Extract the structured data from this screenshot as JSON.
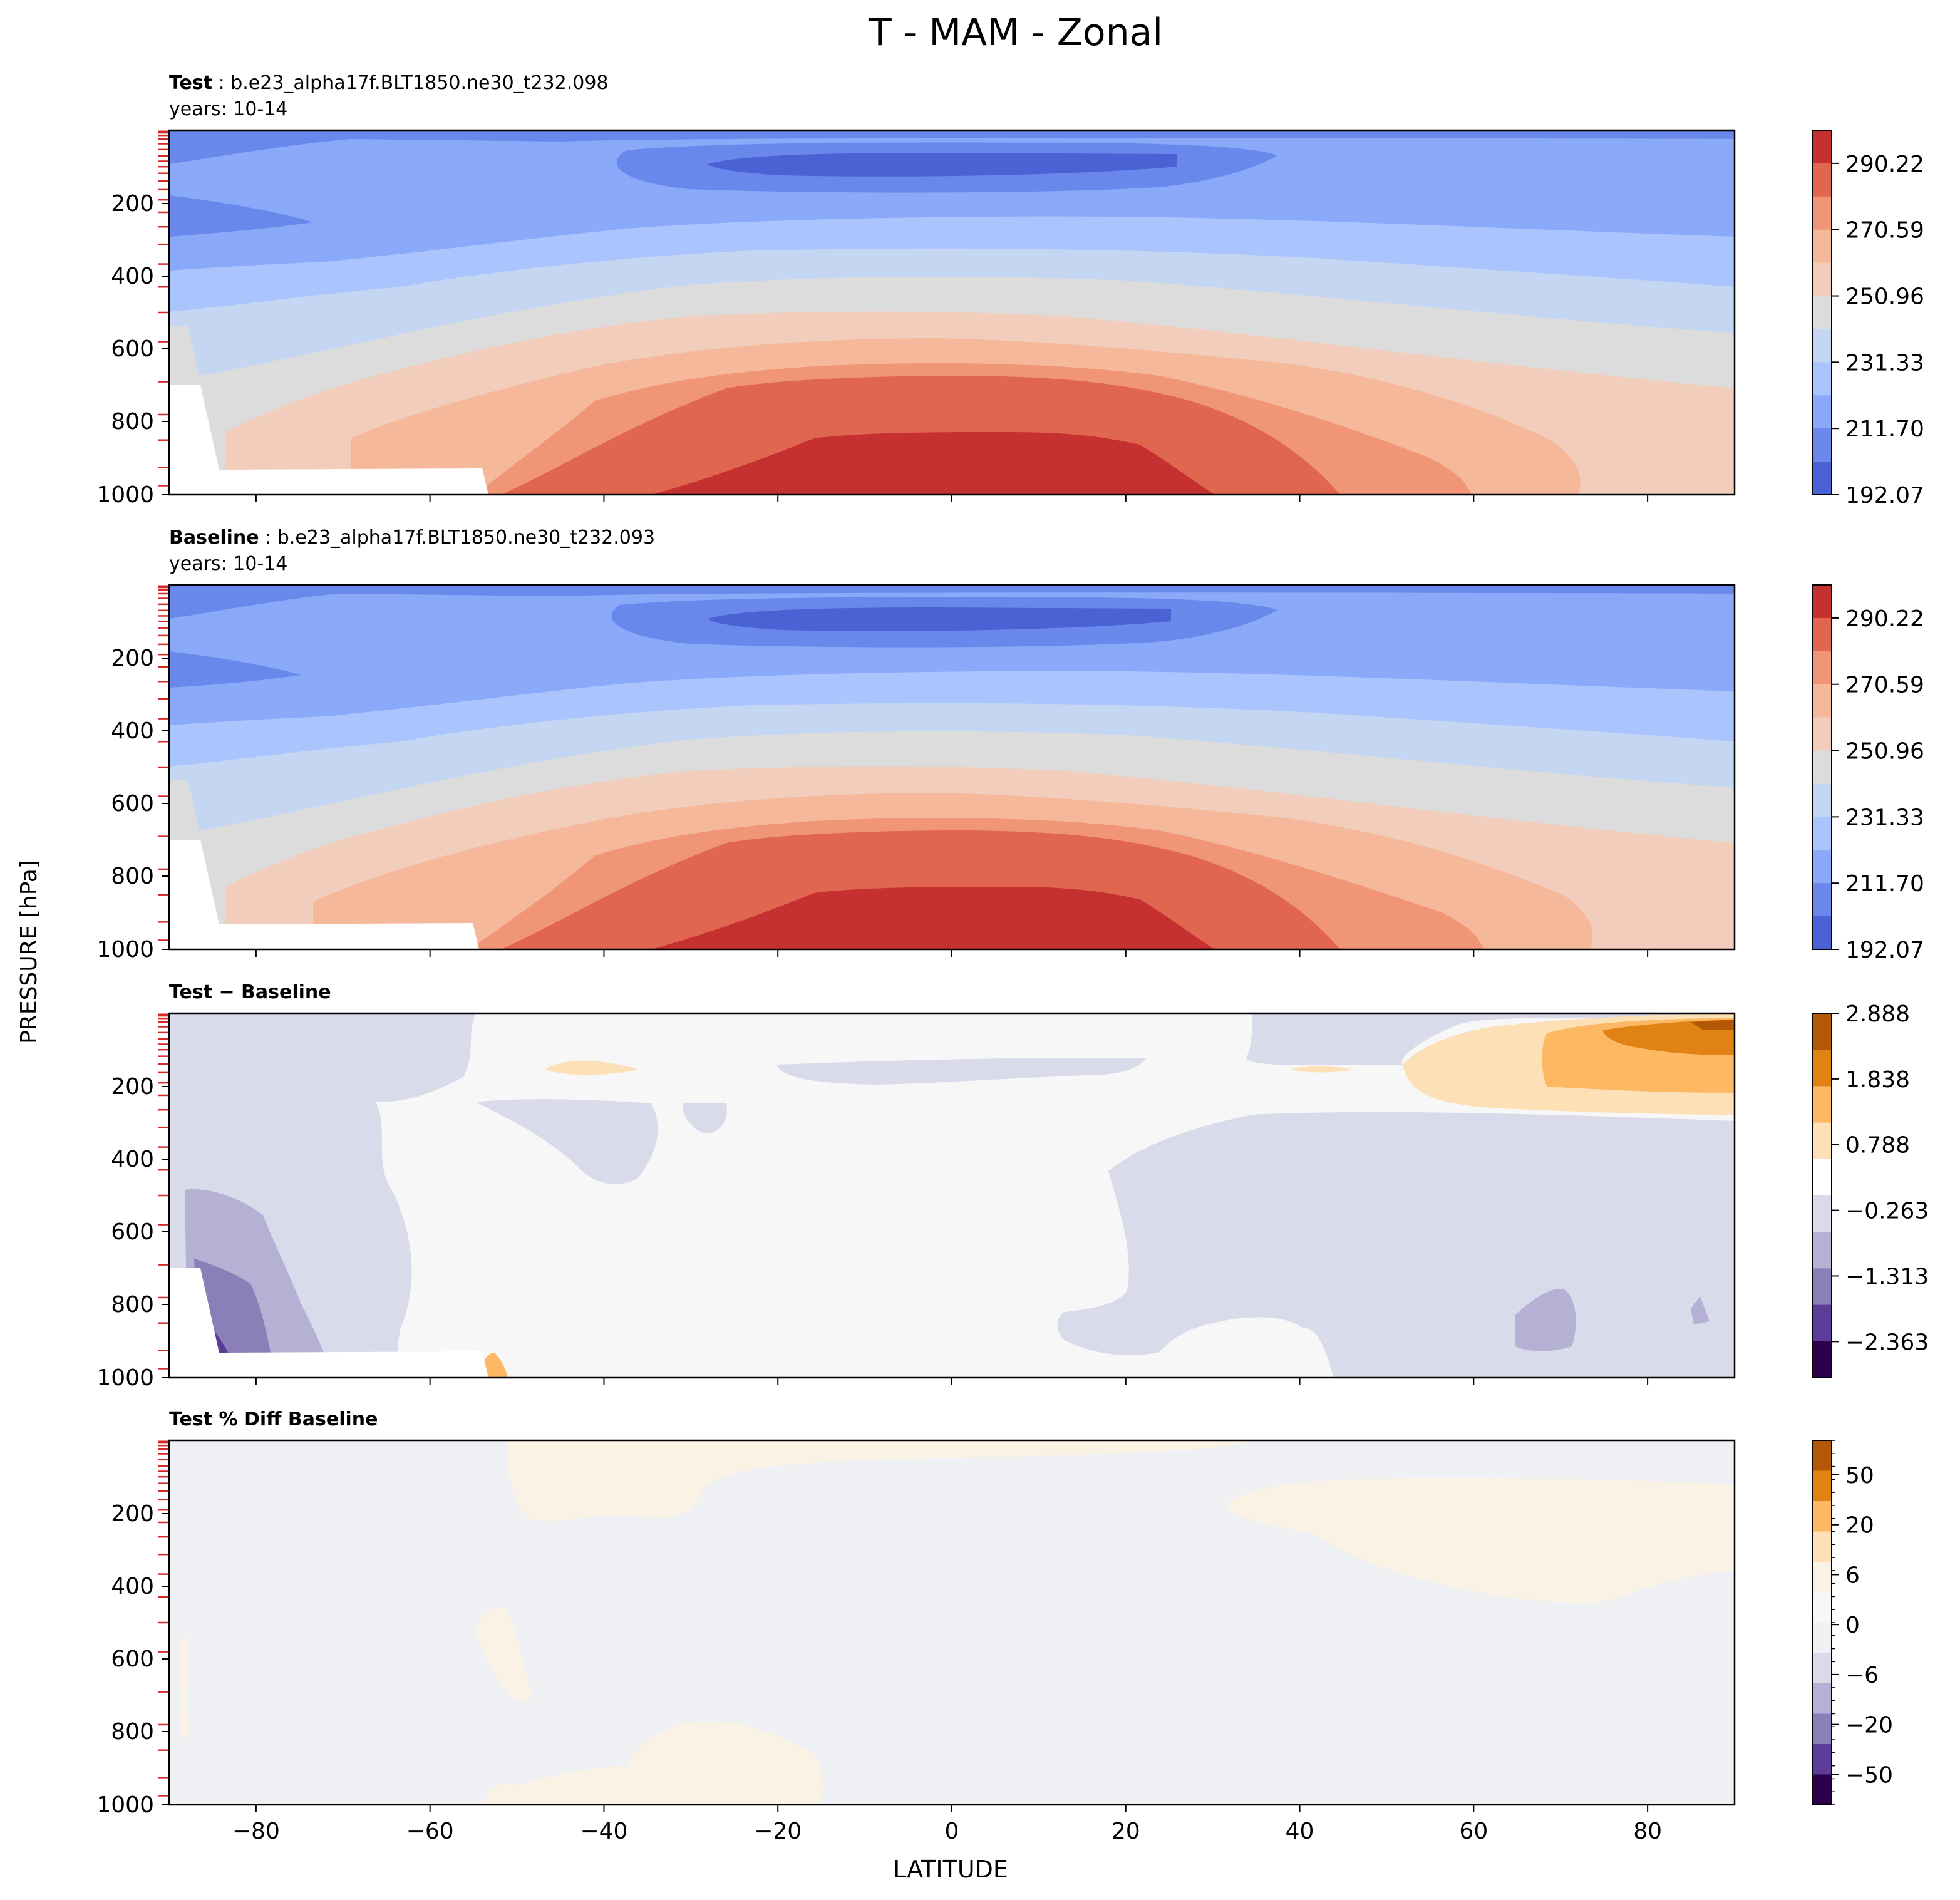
{
  "figure": {
    "suptitle": "T - MAM - Zonal",
    "ylabel": "PRESSURE [hPa]",
    "xlabel": "LATITUDE"
  },
  "chart_data": [
    {
      "type": "heatmap",
      "title_bold": "Test",
      "title_rest": " : b.e23_alpha17f.BLT1850.ne30_t232.098",
      "subtitle": "years: 10-14",
      "colorbar_ticks": [
        "290.22",
        "270.59",
        "250.96",
        "231.33",
        "211.70",
        "192.07"
      ],
      "colormap": "coolwarm",
      "ylim": [
        1000,
        0
      ],
      "xlim": [
        -90,
        90
      ]
    },
    {
      "type": "heatmap",
      "title_bold": "Baseline",
      "title_rest": " : b.e23_alpha17f.BLT1850.ne30_t232.093",
      "subtitle": "years: 10-14",
      "colorbar_ticks": [
        "290.22",
        "270.59",
        "250.96",
        "231.33",
        "211.70",
        "192.07"
      ],
      "colormap": "coolwarm",
      "ylim": [
        1000,
        0
      ],
      "xlim": [
        -90,
        90
      ]
    },
    {
      "type": "heatmap",
      "title_bold": "Test − Baseline",
      "colorbar_ticks": [
        "2.888",
        "1.838",
        "0.788",
        "−0.263",
        "−1.313",
        "−2.363"
      ],
      "colormap": "PuOr_r",
      "ylim": [
        1000,
        0
      ],
      "xlim": [
        -90,
        90
      ]
    },
    {
      "type": "heatmap",
      "title_bold": "Test % Diff Baseline",
      "colorbar_ticks": [
        "50",
        "20",
        "6",
        "0",
        "−6",
        "−20",
        "−50"
      ],
      "colormap": "PuOr_r",
      "ylim": [
        1000,
        0
      ],
      "xlim": [
        -90,
        90
      ]
    }
  ],
  "axes": {
    "yticks": [
      "200",
      "400",
      "600",
      "800",
      "1000"
    ],
    "xticks": [
      "−80",
      "−60",
      "−40",
      "−20",
      "0",
      "20",
      "40",
      "60",
      "80"
    ]
  },
  "colors": {
    "c_cold3": "#4a62d4",
    "c_cold2": "#6a88eb",
    "c_cold1": "#8aaaf9",
    "c_cool1": "#aac5fd",
    "c_cool0": "#c5d6f2",
    "c_neutral": "#dcdcdc",
    "c_warm0": "#f2cdbb",
    "c_warm1": "#f6b89b",
    "c_warm2": "#f09576",
    "c_warm3": "#e1664f",
    "c_warm4": "#c53030",
    "d_bg": "#f7f7f7",
    "d_neg1": "#d9dbeb",
    "d_neg2": "#b4b1d5",
    "d_neg3": "#8a7fb7",
    "d_neg4": "#5c3c97",
    "d_neg5": "#2d004b",
    "d_pos1": "#fee0b6",
    "d_pos2": "#fdb863",
    "d_pos3": "#e08214",
    "d_pos4": "#b35806",
    "p_bg": "#eff0f4",
    "p_pos": "#fbf2e6",
    "red_tick": "#d62728"
  }
}
